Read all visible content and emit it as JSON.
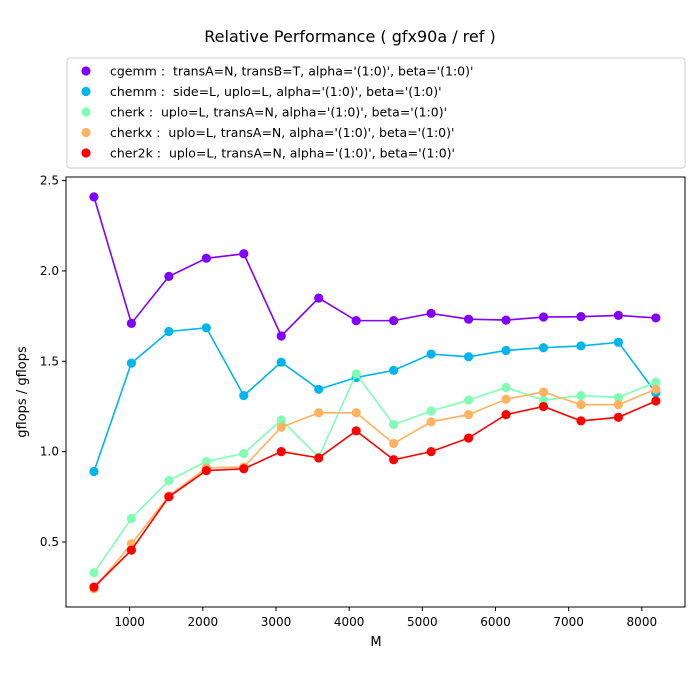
{
  "chart_data": {
    "type": "line",
    "title": "Relative Performance ( gfx90a /  ref )",
    "xlabel": "M",
    "ylabel": "gflops / gflops",
    "xlim": [
      130,
      8590
    ],
    "ylim": [
      0.14,
      2.52
    ],
    "xticks": [
      1000,
      2000,
      3000,
      4000,
      5000,
      6000,
      7000,
      8000
    ],
    "yticks": [
      0.5,
      1.0,
      1.5,
      2.0,
      2.5
    ],
    "xtick_labels": [
      "1000",
      "2000",
      "3000",
      "4000",
      "5000",
      "6000",
      "7000",
      "8000"
    ],
    "ytick_labels": [
      "0.5",
      "1.0",
      "1.5",
      "2.0",
      "2.5"
    ],
    "grid": false,
    "legend_position": "top",
    "x": [
      512,
      1024,
      1536,
      2048,
      2560,
      3072,
      3584,
      4096,
      4608,
      5120,
      5632,
      6144,
      6656,
      7168,
      7680,
      8192
    ],
    "series": [
      {
        "name": "cgemm :  transA=N, transB=T, alpha='(1:0)', beta='(1:0)'",
        "color": "#8000ff",
        "values": [
          2.41,
          1.71,
          1.97,
          2.07,
          2.095,
          1.64,
          1.85,
          1.725,
          1.725,
          1.765,
          1.733,
          1.728,
          1.745,
          1.747,
          1.754,
          1.74
        ]
      },
      {
        "name": "chemm :  side=L, uplo=L, alpha='(1:0)', beta='(1:0)'",
        "color": "#00b5eb",
        "values": [
          0.89,
          1.49,
          1.665,
          1.685,
          1.31,
          1.495,
          1.345,
          1.41,
          1.45,
          1.54,
          1.525,
          1.56,
          1.575,
          1.585,
          1.605,
          1.325
        ]
      },
      {
        "name": "cherk :  uplo=L, transA=N, alpha='(1:0)', beta='(1:0)'",
        "color": "#80ffb4",
        "values": [
          0.33,
          0.63,
          0.84,
          0.945,
          0.99,
          1.175,
          0.97,
          1.43,
          1.15,
          1.225,
          1.285,
          1.355,
          1.285,
          1.31,
          1.3,
          1.385
        ]
      },
      {
        "name": "cherkx :  uplo=L, transA=N, alpha='(1:0)', beta='(1:0)'",
        "color": "#ffb360",
        "values": [
          0.24,
          0.49,
          0.755,
          0.91,
          0.915,
          1.135,
          1.215,
          1.215,
          1.045,
          1.165,
          1.205,
          1.29,
          1.33,
          1.26,
          1.26,
          1.345
        ]
      },
      {
        "name": "cher2k :  uplo=L, transA=N, alpha='(1:0)', beta='(1:0)'",
        "color": "#ff0000",
        "values": [
          0.25,
          0.455,
          0.75,
          0.895,
          0.905,
          1.0,
          0.965,
          1.115,
          0.955,
          1.0,
          1.075,
          1.205,
          1.25,
          1.17,
          1.19,
          1.28
        ]
      }
    ]
  }
}
